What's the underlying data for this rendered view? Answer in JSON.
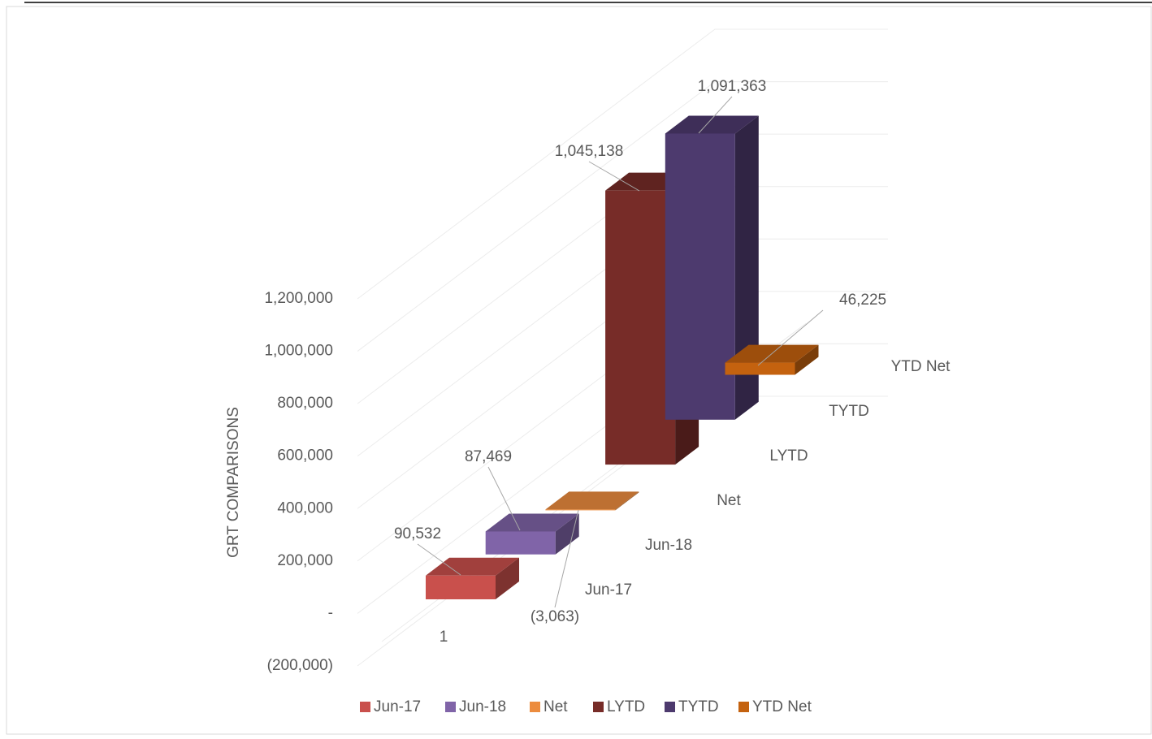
{
  "chart_data": {
    "type": "bar3d",
    "y_axis_label": "GRT COMPARISONS",
    "categories": [
      "1"
    ],
    "series": [
      {
        "name": "Jun-17",
        "color": "#c9504c",
        "values": [
          90532
        ],
        "value_labels": [
          "90,532"
        ]
      },
      {
        "name": "Jun-18",
        "color": "#8064a8",
        "values": [
          87469
        ],
        "value_labels": [
          "87,469"
        ]
      },
      {
        "name": "Net",
        "color": "#ec8c3e",
        "values": [
          -3063
        ],
        "value_labels": [
          "(3,063)"
        ]
      },
      {
        "name": "LYTD",
        "color": "#772c28",
        "values": [
          1045138
        ],
        "value_labels": [
          "1,045,138"
        ]
      },
      {
        "name": "TYTD",
        "color": "#4d3a6e",
        "values": [
          1091363
        ],
        "value_labels": [
          "1,091,363"
        ]
      },
      {
        "name": "YTD Net",
        "color": "#c4620f",
        "values": [
          46225
        ],
        "value_labels": [
          "46,225"
        ]
      }
    ],
    "ylim": [
      -200000,
      1200000
    ],
    "yticks": [
      {
        "value": -200000,
        "label": "(200,000)"
      },
      {
        "value": 0,
        "label": "-"
      },
      {
        "value": 200000,
        "label": "200,000"
      },
      {
        "value": 400000,
        "label": "400,000"
      },
      {
        "value": 600000,
        "label": "600,000"
      },
      {
        "value": 800000,
        "label": "800,000"
      },
      {
        "value": 1000000,
        "label": "1,000,000"
      },
      {
        "value": 1200000,
        "label": "1,200,000"
      }
    ],
    "grid": true,
    "legend": "bottom"
  }
}
